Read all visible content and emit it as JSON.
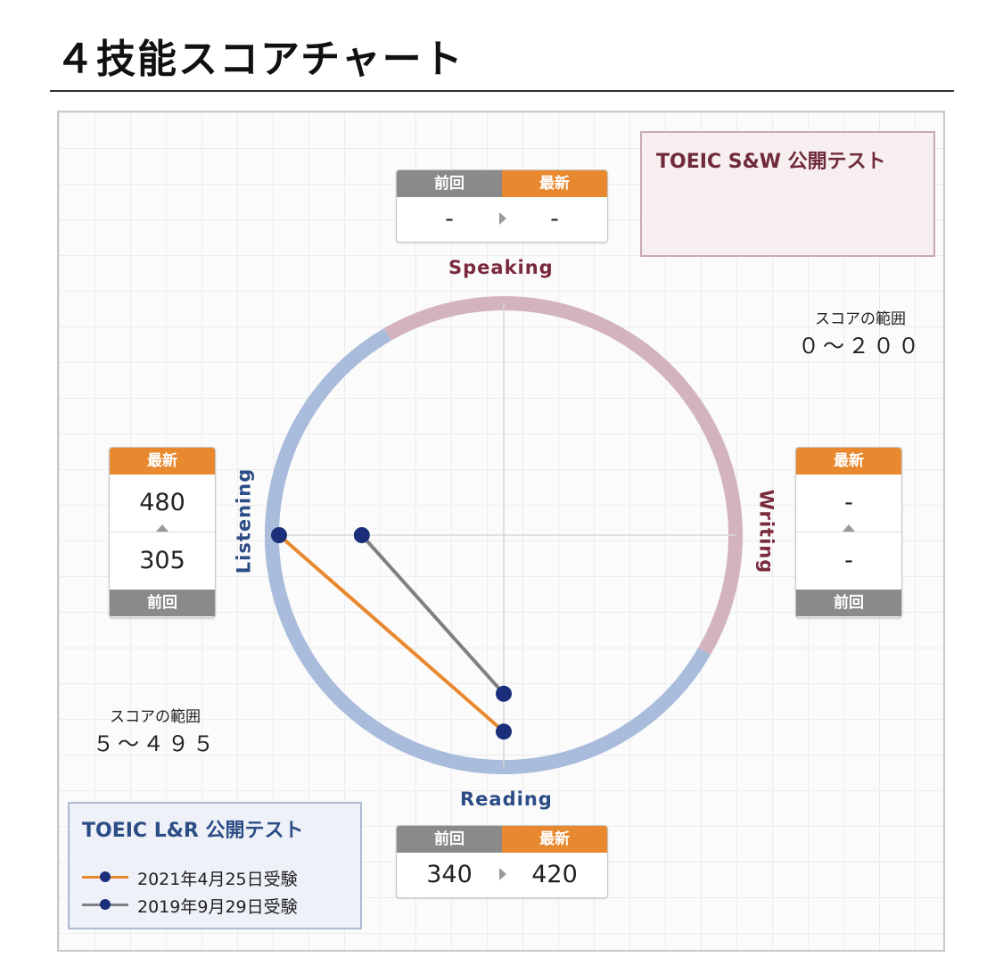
{
  "page": {
    "title": "４技能スコアチャート"
  },
  "colors": {
    "latest": "#e8882f",
    "previous": "#808080",
    "point": "#1a2e7a",
    "sw_ring": "#d3b3bd",
    "lr_ring": "#a9bcdc"
  },
  "sw_panel": {
    "title": "TOEIC S&W 公開テスト",
    "range_caption": "スコアの範囲",
    "range": "０～２００"
  },
  "lr_panel": {
    "title": "TOEIC L&R 公開テスト",
    "range_caption": "スコアの範囲",
    "range": "５～４９５"
  },
  "score_boxes": {
    "speaking": {
      "label": "Speaking",
      "prev_header": "前回",
      "latest_header": "最新",
      "prev": "-",
      "latest": "-"
    },
    "writing": {
      "label": "Writing",
      "latest_header": "最新",
      "prev_header": "前回",
      "latest": "-",
      "prev": "-"
    },
    "listening": {
      "label": "Listening",
      "latest_header": "最新",
      "prev_header": "前回",
      "latest": "480",
      "prev": "305"
    },
    "reading": {
      "label": "Reading",
      "prev_header": "前回",
      "latest_header": "最新",
      "prev": "340",
      "latest": "420"
    }
  },
  "legend": [
    {
      "label": "2021年4月25日受験",
      "color": "#e8882f"
    },
    {
      "label": "2019年9月29日受験",
      "color": "#808080"
    }
  ],
  "chart_data": {
    "type": "radar",
    "axes": [
      "Speaking",
      "Writing",
      "Reading",
      "Listening"
    ],
    "axis_ranges": {
      "Speaking": [
        0,
        200
      ],
      "Writing": [
        0,
        200
      ],
      "Listening": [
        5,
        495
      ],
      "Reading": [
        5,
        495
      ]
    },
    "series": [
      {
        "name": "2021年4月25日受験",
        "values": {
          "Speaking": null,
          "Writing": null,
          "Listening": 480,
          "Reading": 420
        }
      },
      {
        "name": "2019年9月29日受験",
        "values": {
          "Speaking": null,
          "Writing": null,
          "Listening": 305,
          "Reading": 340
        }
      }
    ]
  }
}
